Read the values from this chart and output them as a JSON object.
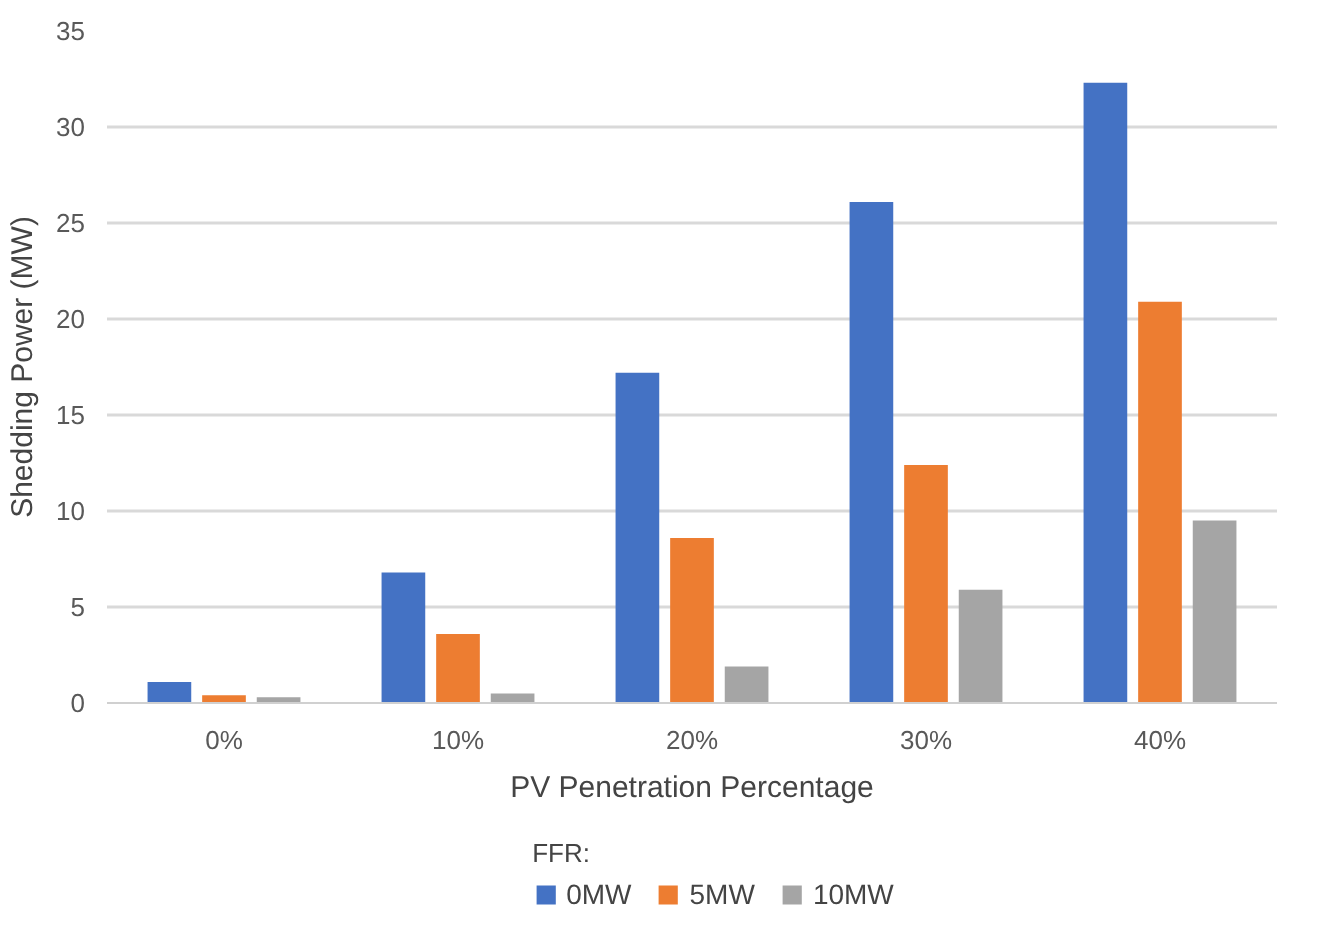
{
  "chart_data": {
    "type": "bar",
    "xlabel": "PV Penetration Percentage",
    "ylabel": "Shedding Power (MW)",
    "legend_title": "FFR:",
    "categories": [
      "0%",
      "10%",
      "20%",
      "30%",
      "40%"
    ],
    "series": [
      {
        "name": "0MW",
        "color": "#4472c4",
        "values": [
          1.1,
          6.8,
          17.2,
          26.1,
          32.3
        ]
      },
      {
        "name": "5MW",
        "color": "#ed7d31",
        "values": [
          0.4,
          3.6,
          8.6,
          12.4,
          20.9
        ]
      },
      {
        "name": "10MW",
        "color": "#a5a5a5",
        "values": [
          0.3,
          0.5,
          1.9,
          5.9,
          9.5
        ]
      }
    ],
    "ylim": [
      0,
      35
    ],
    "yticks": [
      0,
      5,
      10,
      15,
      20,
      25,
      30,
      35
    ],
    "grid": "y",
    "legend": "bottom"
  }
}
